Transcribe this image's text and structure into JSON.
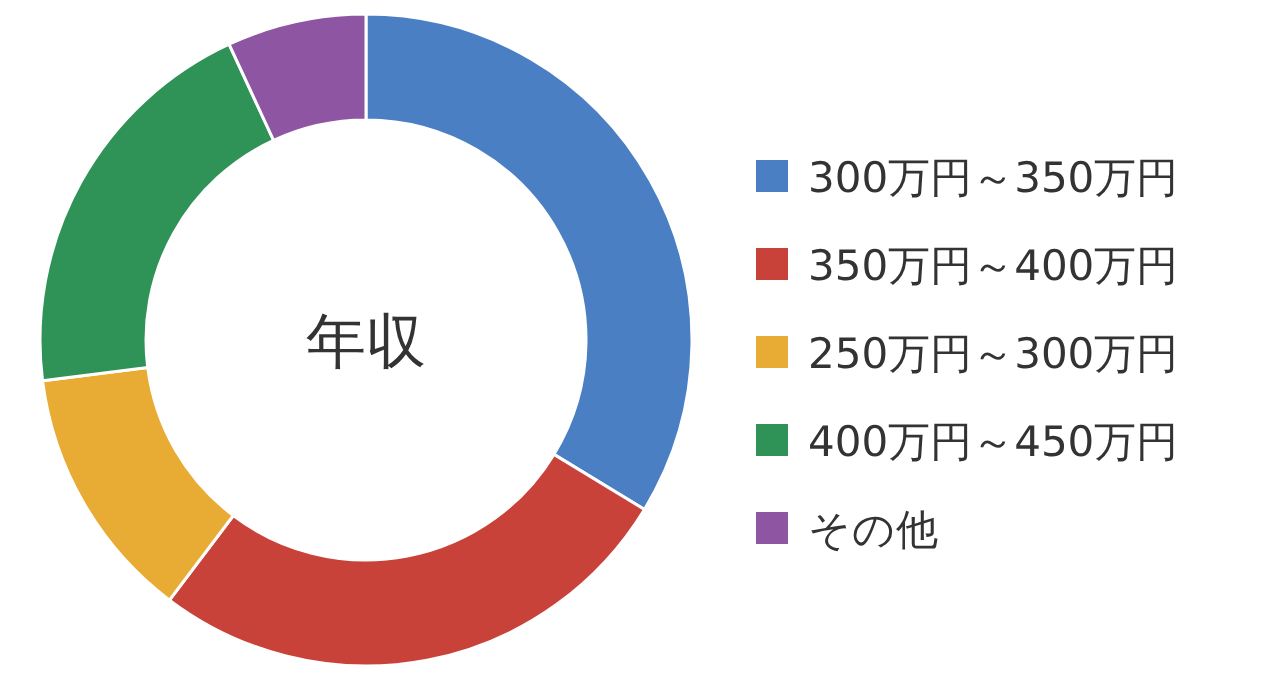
{
  "chart_data": {
    "type": "donut",
    "title": "年収",
    "categories": [
      "300万円～350万円",
      "350万円～400万円",
      "250万円～300万円",
      "400万円～450万円",
      "その他"
    ],
    "values": [
      33.7,
      26.6,
      12.7,
      20.1,
      6.9
    ],
    "colors": [
      "#4a7fc4",
      "#c8423a",
      "#e8ac35",
      "#2f9357",
      "#8e55a3"
    ],
    "legend": "right"
  }
}
